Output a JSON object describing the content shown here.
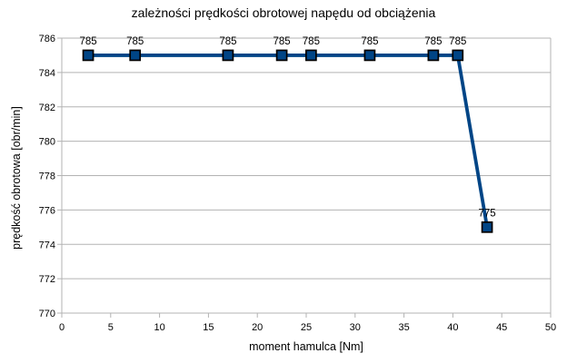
{
  "title": "zależności prędkości obrotowej napędu od obciążenia",
  "chart_data": {
    "type": "line",
    "title": "zależności prędkości obrotowej napędu od obciążenia",
    "xlabel": "moment hamulca [Nm]",
    "ylabel": "prędkość obrotowa [obr/min]",
    "xlim": [
      0,
      50
    ],
    "ylim": [
      770,
      786
    ],
    "xticks": [
      0,
      5,
      10,
      15,
      20,
      25,
      30,
      35,
      40,
      45,
      50
    ],
    "yticks": [
      770,
      772,
      774,
      776,
      778,
      780,
      782,
      784,
      786
    ],
    "grid": "horizontal-only",
    "legend": "none",
    "series": [
      {
        "name": "prędkość obrotowa",
        "marker": "square",
        "x": [
          2.7,
          7.5,
          17,
          22.5,
          25.5,
          31.5,
          38,
          40.5,
          43.5
        ],
        "y": [
          785,
          785,
          785,
          785,
          785,
          785,
          785,
          785,
          775
        ],
        "point_labels": [
          "785",
          "785",
          "785",
          "785",
          "785",
          "785",
          "785",
          "785",
          "775"
        ]
      }
    ],
    "colors": {
      "line": "#004586",
      "marker_fill": "#004586",
      "marker_border": "#000000",
      "grid": "#b3b3b3",
      "axis": "#b3b3b3",
      "text": "#000000",
      "background": "#ffffff"
    }
  }
}
